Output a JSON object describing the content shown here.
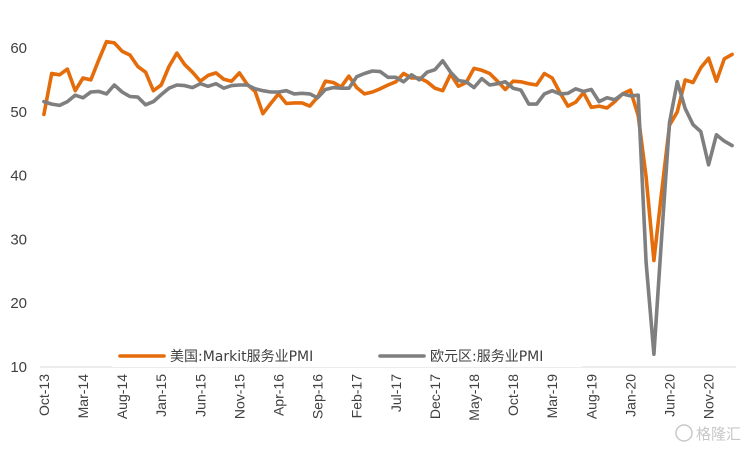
{
  "chart_data": {
    "type": "line",
    "x": [
      "Oct-13",
      "Nov-13",
      "Dec-13",
      "Jan-14",
      "Feb-14",
      "Mar-14",
      "Apr-14",
      "May-14",
      "Jun-14",
      "Jul-14",
      "Aug-14",
      "Sep-14",
      "Oct-14",
      "Nov-14",
      "Dec-14",
      "Jan-15",
      "Feb-15",
      "Mar-15",
      "Apr-15",
      "May-15",
      "Jun-15",
      "Jul-15",
      "Aug-15",
      "Sep-15",
      "Oct-15",
      "Nov-15",
      "Dec-15",
      "Jan-16",
      "Feb-16",
      "Mar-16",
      "Apr-16",
      "May-16",
      "Jun-16",
      "Jul-16",
      "Aug-16",
      "Sep-16",
      "Oct-16",
      "Nov-16",
      "Dec-16",
      "Jan-17",
      "Feb-17",
      "Mar-17",
      "Apr-17",
      "May-17",
      "Jun-17",
      "Jul-17",
      "Aug-17",
      "Sep-17",
      "Oct-17",
      "Nov-17",
      "Dec-17",
      "Jan-18",
      "Feb-18",
      "Mar-18",
      "Apr-18",
      "May-18",
      "Jun-18",
      "Jul-18",
      "Aug-18",
      "Sep-18",
      "Oct-18",
      "Nov-18",
      "Dec-18",
      "Jan-19",
      "Feb-19",
      "Mar-19",
      "Apr-19",
      "May-19",
      "Jun-19",
      "Jul-19",
      "Aug-19",
      "Sep-19",
      "Oct-19",
      "Nov-19",
      "Dec-19",
      "Jan-20",
      "Feb-20",
      "Mar-20",
      "Apr-20",
      "May-20",
      "Jun-20",
      "Jul-20",
      "Aug-20",
      "Sep-20",
      "Oct-20",
      "Nov-20",
      "Dec-20",
      "Jan-21",
      "Feb-21"
    ],
    "x_tick_labels": [
      "Oct-13",
      "Mar-14",
      "Aug-14",
      "Jan-15",
      "Jun-15",
      "Nov-15",
      "Apr-16",
      "Sep-16",
      "Feb-17",
      "Jul-17",
      "Dec-17",
      "May-18",
      "Oct-18",
      "Mar-19",
      "Aug-19",
      "Jan-20",
      "Jun-20",
      "Nov-20"
    ],
    "y_ticks": [
      10,
      20,
      30,
      40,
      50,
      60
    ],
    "ylim": [
      10,
      62
    ],
    "series": [
      {
        "name": "美国:Markit服务业PMI",
        "color": "#E46C0A",
        "values": [
          49.6,
          56.0,
          55.8,
          56.7,
          53.3,
          55.3,
          55.0,
          58.1,
          61.0,
          60.8,
          59.5,
          58.9,
          57.1,
          56.2,
          53.3,
          54.2,
          57.1,
          59.2,
          57.4,
          56.2,
          54.8,
          55.7,
          56.1,
          55.1,
          54.8,
          56.1,
          54.3,
          53.2,
          49.7,
          51.3,
          52.8,
          51.3,
          51.4,
          51.4,
          50.9,
          52.3,
          54.8,
          54.6,
          53.9,
          55.6,
          53.8,
          52.8,
          53.1,
          53.6,
          54.2,
          54.7,
          56.0,
          55.3,
          55.3,
          54.7,
          53.7,
          53.3,
          55.9,
          54.0,
          54.6,
          56.8,
          56.5,
          56.0,
          54.8,
          53.5,
          54.8,
          54.7,
          54.4,
          54.2,
          56.0,
          55.3,
          53.0,
          50.9,
          51.5,
          53.0,
          50.7,
          50.9,
          50.6,
          51.6,
          52.8,
          53.4,
          49.4,
          39.8,
          26.7,
          37.5,
          47.9,
          50.0,
          55.0,
          54.6,
          56.9,
          58.4,
          54.8,
          58.3,
          59.0
        ]
      },
      {
        "name": "欧元区:服务业PMI",
        "color": "#7F7F7F",
        "values": [
          51.6,
          51.2,
          51.0,
          51.6,
          52.6,
          52.2,
          53.1,
          53.2,
          52.8,
          54.2,
          53.1,
          52.4,
          52.3,
          51.1,
          51.6,
          52.7,
          53.7,
          54.2,
          54.1,
          53.8,
          54.4,
          54.0,
          54.4,
          53.7,
          54.1,
          54.2,
          54.2,
          53.6,
          53.3,
          53.1,
          53.1,
          53.3,
          52.8,
          52.9,
          52.8,
          52.2,
          53.5,
          53.8,
          53.7,
          53.7,
          55.5,
          56.0,
          56.4,
          56.3,
          55.4,
          55.4,
          54.7,
          55.8,
          55.0,
          56.2,
          56.6,
          58.0,
          56.2,
          54.9,
          54.7,
          53.8,
          55.2,
          54.2,
          54.4,
          54.7,
          53.7,
          53.4,
          51.2,
          51.2,
          52.8,
          53.3,
          52.8,
          52.9,
          53.6,
          53.2,
          53.5,
          51.6,
          52.2,
          51.9,
          52.8,
          52.5,
          52.6,
          26.4,
          12.0,
          30.5,
          48.3,
          54.7,
          50.5,
          48.0,
          46.9,
          41.7,
          46.4,
          45.4,
          44.7
        ]
      }
    ],
    "legend_position": "bottom",
    "watermark": "格隆汇"
  }
}
